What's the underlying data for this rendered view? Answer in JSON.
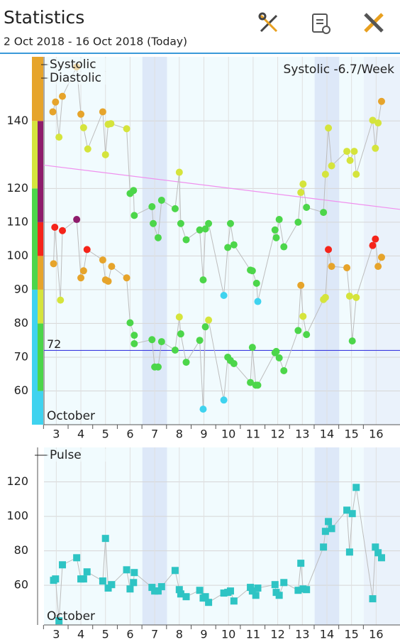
{
  "header": {
    "title": "Statistics",
    "subtitle": "2 Oct 2018 - 16 Oct 2018 (Today)"
  },
  "chart_data": [
    {
      "type": "scatter",
      "x_axis_label": "October",
      "annotation": "Systolic -6.7/Week",
      "xlim": [
        2.5,
        16.97
      ],
      "xticks": [
        3,
        4,
        5,
        6,
        7,
        8,
        9,
        10,
        11,
        12,
        13,
        14,
        15,
        16
      ],
      "ylim": [
        50,
        159
      ],
      "yticks": [
        60,
        70,
        80,
        90,
        100,
        110,
        120,
        140
      ],
      "grid": true,
      "weekend_bands": [
        [
          6.5,
          7.5
        ],
        [
          13.5,
          14.5
        ]
      ],
      "today_band": [
        15.5,
        16.97
      ],
      "trend_line": {
        "x": [
          2.5,
          16.97
        ],
        "values": [
          126.9,
          113.8
        ],
        "color": "#f090ee"
      },
      "reference_line": {
        "value": 72,
        "color": "#3a3ae0"
      },
      "systolic_bands": [
        {
          "from": 50,
          "to": 90,
          "color": "#3fd3ef"
        },
        {
          "from": 90,
          "to": 120,
          "color": "#4cd64a"
        },
        {
          "from": 120,
          "to": 140,
          "color": "#d5e43c"
        },
        {
          "from": 140,
          "to": 159,
          "color": "#e6a42b"
        }
      ],
      "diastolic_bands": [
        {
          "from": 50,
          "to": 60,
          "color": "#3fd3ef"
        },
        {
          "from": 60,
          "to": 80,
          "color": "#4cd64a"
        },
        {
          "from": 80,
          "to": 90,
          "color": "#d5e43c"
        },
        {
          "from": 90,
          "to": 100,
          "color": "#e6a42b"
        },
        {
          "from": 100,
          "to": 110,
          "color": "#f5241a"
        },
        {
          "from": 110,
          "to": 140,
          "color": "#8e1c6c"
        },
        {
          "from": 140,
          "to": 159,
          "color": "#e6a42b"
        }
      ],
      "series": [
        {
          "name": "Systolic",
          "x": [
            2.86,
            2.97,
            3.11,
            3.25,
            3.83,
            4.0,
            4.11,
            4.28,
            4.89,
            5.0,
            5.11,
            5.22,
            5.86,
            6.0,
            6.14,
            6.17,
            6.89,
            6.94,
            7.14,
            7.28,
            7.83,
            8.0,
            8.06,
            8.28,
            8.83,
            8.97,
            9.06,
            9.19,
            9.81,
            9.97,
            10.08,
            10.22,
            10.89,
            10.97,
            11.14,
            11.19,
            11.89,
            11.94,
            12.06,
            12.25,
            12.83,
            12.94,
            13.03,
            13.17,
            13.86,
            13.94,
            14.06,
            14.19,
            14.81,
            14.94,
            15.11,
            15.19,
            15.86,
            15.97,
            16.08,
            16.22
          ],
          "values": [
            142.7,
            145.6,
            135.2,
            147.3,
            156,
            142,
            138,
            131.7,
            142.7,
            130,
            139,
            139.2,
            137.7,
            118.5,
            119.4,
            112,
            114.6,
            109.6,
            105.4,
            116.5,
            114,
            124.8,
            109.6,
            104.8,
            107.7,
            92.9,
            108,
            109.6,
            88.3,
            102.5,
            109.6,
            103.3,
            95.8,
            95.6,
            91.9,
            86.5,
            107.7,
            105.4,
            110.8,
            102.7,
            110,
            118.8,
            121.3,
            114.4,
            112.9,
            124.2,
            137.9,
            126.7,
            131,
            128.3,
            131,
            124.2,
            140.2,
            131.9,
            139.4,
            145.8
          ],
          "colors": [
            "#e6a42b",
            "#e6a42b",
            "#d5e43c",
            "#e6a42b",
            "#e6a42b",
            "#e6a42b",
            "#d5e43c",
            "#d5e43c",
            "#e6a42b",
            "#d5e43c",
            "#d5e43c",
            "#d5e43c",
            "#d5e43c",
            "#4cd64a",
            "#4cd64a",
            "#4cd64a",
            "#4cd64a",
            "#4cd64a",
            "#4cd64a",
            "#4cd64a",
            "#4cd64a",
            "#d5e43c",
            "#4cd64a",
            "#4cd64a",
            "#4cd64a",
            "#4cd64a",
            "#4cd64a",
            "#4cd64a",
            "#3fd3ef",
            "#4cd64a",
            "#4cd64a",
            "#4cd64a",
            "#4cd64a",
            "#4cd64a",
            "#4cd64a",
            "#3fd3ef",
            "#4cd64a",
            "#4cd64a",
            "#4cd64a",
            "#4cd64a",
            "#4cd64a",
            "#d5e43c",
            "#d5e43c",
            "#4cd64a",
            "#4cd64a",
            "#d5e43c",
            "#d5e43c",
            "#d5e43c",
            "#d5e43c",
            "#d5e43c",
            "#d5e43c",
            "#d5e43c",
            "#d5e43c",
            "#d5e43c",
            "#d5e43c",
            "#e6a42b"
          ]
        },
        {
          "name": "Diastolic",
          "x": [
            2.89,
            2.94,
            3.17,
            3.25,
            3.83,
            4.0,
            4.11,
            4.25,
            4.89,
            5.0,
            5.11,
            5.25,
            5.86,
            6.0,
            6.17,
            6.17,
            6.89,
            7.0,
            7.14,
            7.28,
            7.83,
            8.0,
            8.06,
            8.28,
            8.83,
            8.97,
            9.06,
            9.19,
            9.81,
            9.97,
            10.08,
            10.22,
            10.89,
            10.97,
            11.11,
            11.19,
            11.89,
            11.94,
            12.06,
            12.25,
            12.83,
            12.94,
            13.03,
            13.17,
            13.86,
            13.94,
            14.06,
            14.19,
            14.81,
            14.92,
            15.03,
            15.19,
            15.86,
            15.97,
            16.08,
            16.22
          ],
          "values": [
            97.7,
            108.5,
            86.9,
            107.5,
            110.8,
            93.5,
            95.6,
            101.9,
            98.8,
            92.9,
            92.5,
            96.9,
            93.5,
            80.2,
            76.5,
            74,
            75.2,
            67.1,
            67.1,
            74.6,
            72.1,
            81.9,
            76.9,
            68.5,
            75,
            54.6,
            79,
            81,
            57.3,
            70,
            69,
            68.1,
            62.5,
            72.9,
            61.7,
            61.7,
            71.3,
            71.7,
            69.8,
            66,
            77.9,
            91.3,
            82.1,
            76.7,
            87.1,
            87.7,
            101.9,
            96.9,
            96.5,
            88.1,
            74.8,
            87.7,
            103.1,
            105,
            96.9,
            99.6
          ],
          "colors": [
            "#e6a42b",
            "#f5241a",
            "#d5e43c",
            "#f5241a",
            "#8e1c6c",
            "#e6a42b",
            "#e6a42b",
            "#f5241a",
            "#e6a42b",
            "#e6a42b",
            "#e6a42b",
            "#e6a42b",
            "#e6a42b",
            "#4cd64a",
            "#4cd64a",
            "#4cd64a",
            "#4cd64a",
            "#4cd64a",
            "#4cd64a",
            "#4cd64a",
            "#4cd64a",
            "#d5e43c",
            "#4cd64a",
            "#4cd64a",
            "#4cd64a",
            "#3fd3ef",
            "#4cd64a",
            "#d5e43c",
            "#3fd3ef",
            "#4cd64a",
            "#4cd64a",
            "#4cd64a",
            "#4cd64a",
            "#4cd64a",
            "#4cd64a",
            "#4cd64a",
            "#4cd64a",
            "#4cd64a",
            "#4cd64a",
            "#4cd64a",
            "#4cd64a",
            "#e6a42b",
            "#d5e43c",
            "#4cd64a",
            "#d5e43c",
            "#d5e43c",
            "#f5241a",
            "#e6a42b",
            "#e6a42b",
            "#d5e43c",
            "#4cd64a",
            "#d5e43c",
            "#f5241a",
            "#f5241a",
            "#e6a42b",
            "#e6a42b"
          ]
        }
      ]
    },
    {
      "type": "scatter",
      "x_axis_label": "October",
      "xlim": [
        2.5,
        16.97
      ],
      "xticks": [
        3,
        4,
        5,
        6,
        7,
        8,
        9,
        10,
        11,
        12,
        13,
        14,
        15,
        16
      ],
      "ylim": [
        37,
        140
      ],
      "yticks": [
        60,
        80,
        100,
        120
      ],
      "grid": true,
      "weekend_bands": [
        [
          6.5,
          7.5
        ],
        [
          13.5,
          14.5
        ]
      ],
      "today_band": [
        15.5,
        16.97
      ],
      "series": [
        {
          "name": "Pulse",
          "color": "#2ec4c4",
          "x": [
            2.89,
            2.97,
            3.11,
            3.25,
            3.83,
            4.0,
            4.11,
            4.25,
            4.89,
            5.0,
            5.11,
            5.25,
            5.86,
            6.0,
            6.14,
            6.17,
            6.89,
            7.0,
            7.14,
            7.28,
            7.83,
            8.0,
            8.06,
            8.28,
            8.83,
            8.97,
            9.06,
            9.19,
            9.81,
            9.97,
            10.08,
            10.22,
            10.89,
            10.97,
            11.11,
            11.19,
            11.89,
            11.94,
            12.06,
            12.25,
            12.83,
            12.94,
            13.03,
            13.17,
            13.86,
            13.94,
            14.06,
            14.19,
            14.81,
            14.92,
            15.03,
            15.19,
            15.86,
            15.97,
            16.08,
            16.22
          ],
          "values": [
            62.9,
            63.7,
            39.4,
            71.9,
            76,
            63.7,
            63.7,
            67.8,
            62.5,
            87.2,
            58.4,
            60.4,
            69,
            57.9,
            61.6,
            67.4,
            58.8,
            56.7,
            56.7,
            59.2,
            68.6,
            57.5,
            55,
            53.4,
            57.1,
            52.6,
            53.4,
            50.1,
            55.5,
            55.9,
            56.7,
            50.9,
            58.8,
            56.7,
            54.2,
            58.4,
            60.4,
            55.9,
            54.2,
            61.6,
            57.1,
            72.8,
            57.9,
            57.5,
            82.2,
            91.3,
            97,
            92.9,
            103.6,
            79.3,
            101.6,
            116.8,
            52.2,
            82.2,
            78.9,
            76
          ]
        }
      ]
    }
  ]
}
